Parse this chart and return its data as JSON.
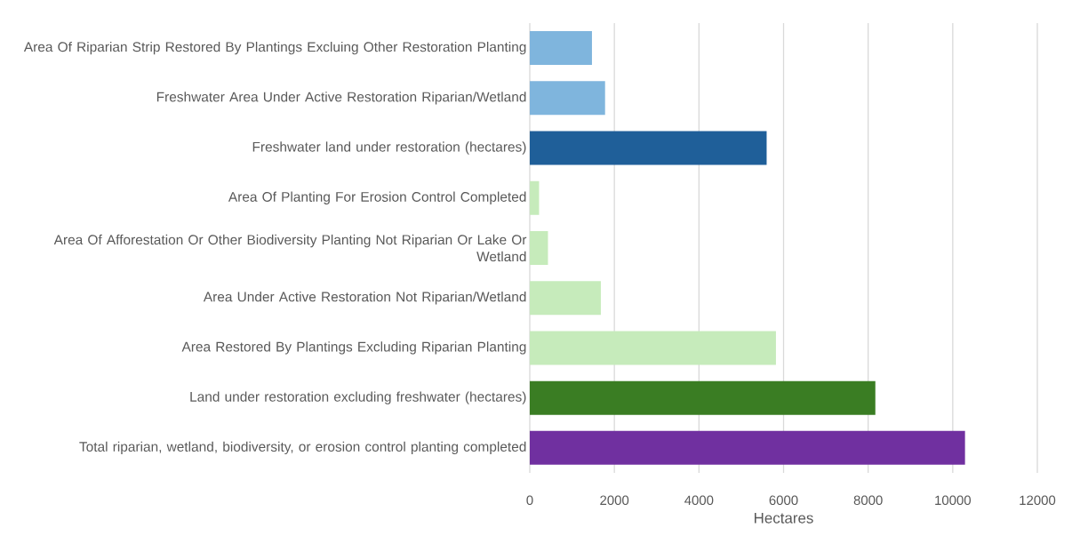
{
  "chart_data": {
    "type": "bar",
    "orientation": "horizontal",
    "xlabel": "Hectares",
    "categories": [
      "Area Of Riparian Strip Restored By Plantings Excluing Other Restoration Planting",
      "Freshwater Area Under Active Restoration Riparian/Wetland",
      "Freshwater land under restoration (hectares)",
      "Area Of Planting For Erosion Control Completed",
      "Area Of Afforestation Or Other Biodiversity Planting Not Riparian Or Lake Or Wetland",
      "Area Under Active Restoration Not Riparian/Wetland",
      "Area Restored By Plantings Excluding Riparian Planting",
      "Land under restoration excluding freshwater (hectares)",
      "Total riparian, wetland, biodiversity, or erosion control planting completed"
    ],
    "values": [
      1470,
      1780,
      5600,
      220,
      430,
      1680,
      5820,
      8170,
      10290
    ],
    "colors": [
      "#7fb5dd",
      "#7fb5dd",
      "#1f5f99",
      "#c6ebbb",
      "#c6ebbb",
      "#c6ebbb",
      "#c6ebbb",
      "#3a7d23",
      "#7030a0"
    ],
    "xlim": [
      0,
      12000
    ],
    "xticks": [
      0,
      2000,
      4000,
      6000,
      8000,
      10000,
      12000
    ],
    "grid": "x"
  }
}
